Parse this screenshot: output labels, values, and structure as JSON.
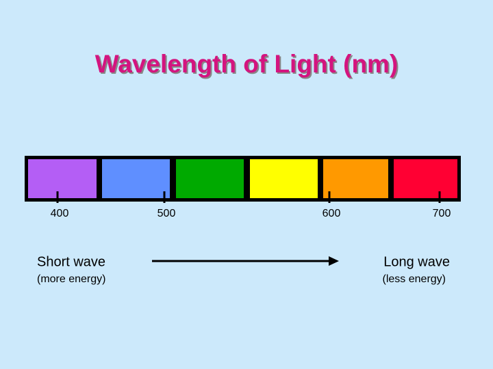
{
  "title": "Wavelength of Light (nm)",
  "bands": [
    {
      "color": "#b45ef5"
    },
    {
      "color": "#5f8fff"
    },
    {
      "color": "#00aa00"
    },
    {
      "color": "#ffff00"
    },
    {
      "color": "#ff9900"
    },
    {
      "color": "#ff0033"
    }
  ],
  "ticks": [
    "400",
    "500",
    "600",
    "700"
  ],
  "left": {
    "label": "Short wave",
    "note": "(more energy)"
  },
  "right": {
    "label": "Long wave",
    "note": "(less energy)"
  }
}
